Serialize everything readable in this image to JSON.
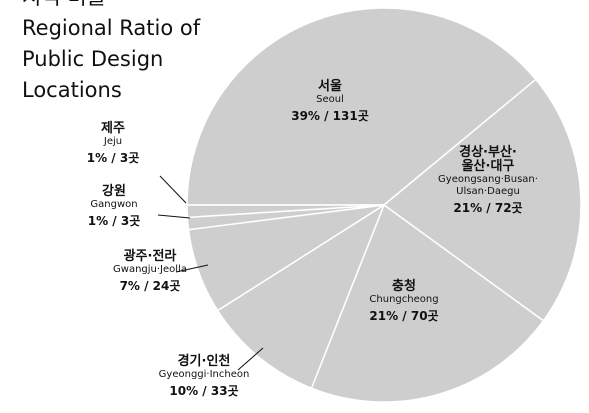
{
  "chart_data": {
    "type": "pie",
    "supertitle": "지역 비율",
    "title": "Regional Ratio of\nPublic Design\nLocations",
    "categories": [
      "서울",
      "경상·부산·\n울산·대구",
      "충청",
      "경기·인천",
      "광주·전라",
      "강원",
      "제주"
    ],
    "english_names": [
      "Seoul",
      "Gyeongsang·Busan·\nUlsan·Daegu",
      "Chungcheong",
      "Gyeonggi·Incheon",
      "Gwangju·Jeolla",
      "Gangwon",
      "Jeju"
    ],
    "values": [
      39,
      21,
      21,
      10,
      7,
      1,
      1
    ],
    "value_labels": [
      "39% / 131곳",
      "21% / 72곳",
      "21% / 70곳",
      "10% / 33곳",
      "7% / 24곳",
      "1% / 3곳",
      "1% / 3곳"
    ],
    "color": "#cecece"
  }
}
